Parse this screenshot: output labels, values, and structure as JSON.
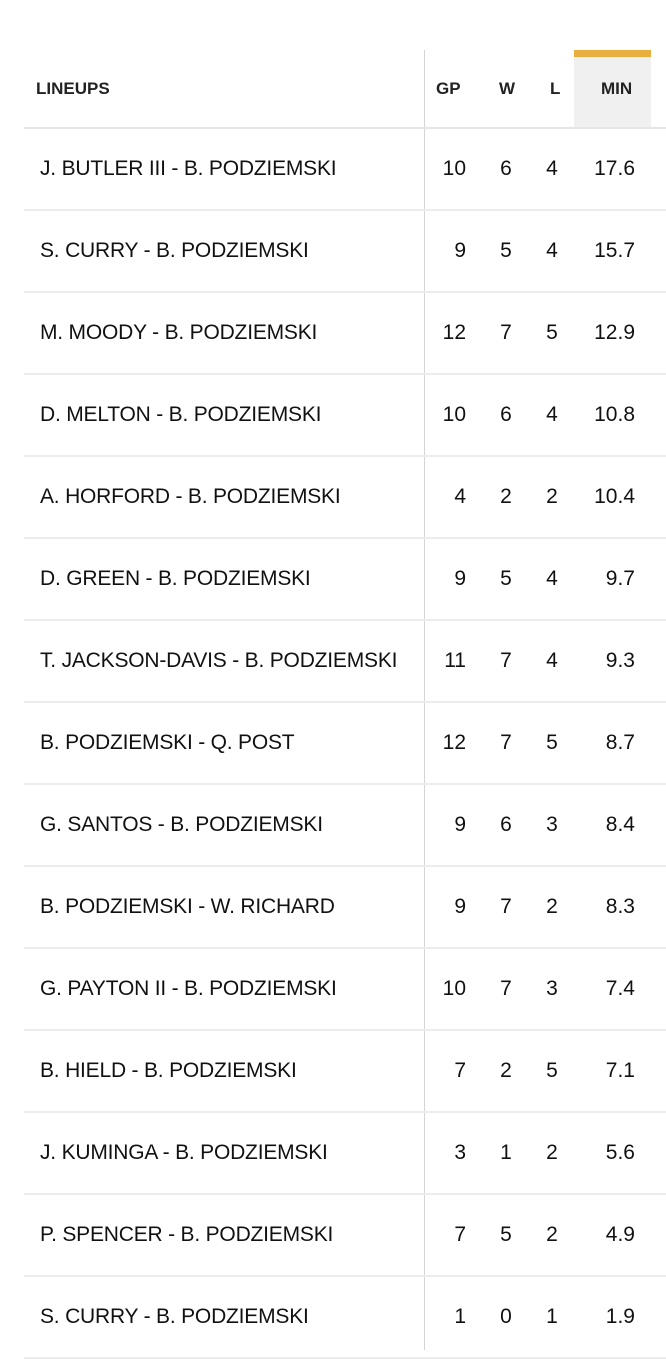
{
  "header": {
    "lineups": "LINEUPS",
    "gp": "GP",
    "w": "W",
    "l": "L",
    "min": "MIN"
  },
  "colors": {
    "sort_accent": "#e8ae3e",
    "sort_bg": "#f0f0f0"
  },
  "rows": [
    {
      "lineup": "J. BUTLER III - B. PODZIEMSKI",
      "gp": "10",
      "w": "6",
      "l": "4",
      "min": "17.6"
    },
    {
      "lineup": "S. CURRY - B. PODZIEMSKI",
      "gp": "9",
      "w": "5",
      "l": "4",
      "min": "15.7"
    },
    {
      "lineup": "M. MOODY - B. PODZIEMSKI",
      "gp": "12",
      "w": "7",
      "l": "5",
      "min": "12.9"
    },
    {
      "lineup": "D. MELTON - B. PODZIEMSKI",
      "gp": "10",
      "w": "6",
      "l": "4",
      "min": "10.8"
    },
    {
      "lineup": "A. HORFORD - B. PODZIEMSKI",
      "gp": "4",
      "w": "2",
      "l": "2",
      "min": "10.4"
    },
    {
      "lineup": "D. GREEN - B. PODZIEMSKI",
      "gp": "9",
      "w": "5",
      "l": "4",
      "min": "9.7"
    },
    {
      "lineup": "T. JACKSON-DAVIS - B. PODZIEMSKI",
      "gp": "11",
      "w": "7",
      "l": "4",
      "min": "9.3"
    },
    {
      "lineup": "B. PODZIEMSKI - Q. POST",
      "gp": "12",
      "w": "7",
      "l": "5",
      "min": "8.7"
    },
    {
      "lineup": "G. SANTOS - B. PODZIEMSKI",
      "gp": "9",
      "w": "6",
      "l": "3",
      "min": "8.4"
    },
    {
      "lineup": "B. PODZIEMSKI - W. RICHARD",
      "gp": "9",
      "w": "7",
      "l": "2",
      "min": "8.3"
    },
    {
      "lineup": "G. PAYTON II - B. PODZIEMSKI",
      "gp": "10",
      "w": "7",
      "l": "3",
      "min": "7.4"
    },
    {
      "lineup": "B. HIELD - B. PODZIEMSKI",
      "gp": "7",
      "w": "2",
      "l": "5",
      "min": "7.1"
    },
    {
      "lineup": "J. KUMINGA - B. PODZIEMSKI",
      "gp": "3",
      "w": "1",
      "l": "2",
      "min": "5.6"
    },
    {
      "lineup": "P. SPENCER - B. PODZIEMSKI",
      "gp": "7",
      "w": "5",
      "l": "2",
      "min": "4.9"
    },
    {
      "lineup": "S. CURRY - B. PODZIEMSKI",
      "gp": "1",
      "w": "0",
      "l": "1",
      "min": "1.9"
    }
  ]
}
